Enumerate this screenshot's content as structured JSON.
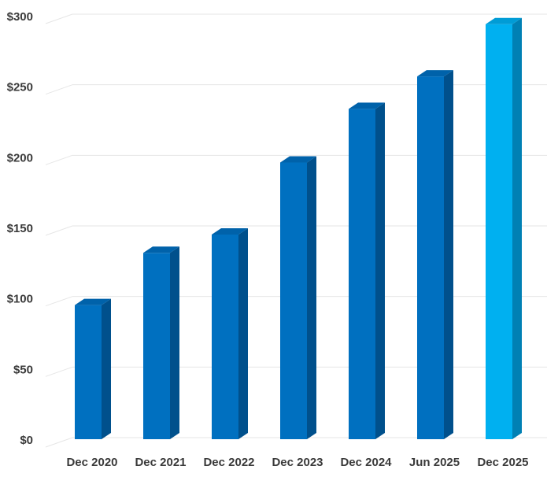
{
  "chart_data": {
    "type": "bar",
    "title": "",
    "xlabel": "",
    "ylabel": "",
    "categories": [
      "Dec 2020",
      "Dec 2021",
      "Dec 2022",
      "Dec 2023",
      "Dec 2024",
      "Jun 2025",
      "Dec 2025"
    ],
    "values": [
      95,
      132,
      145,
      196,
      234,
      257,
      294
    ],
    "highlighted_category": "Dec 2025",
    "ylim": [
      0,
      300
    ],
    "y_ticks": [
      0,
      50,
      100,
      150,
      200,
      250,
      300
    ],
    "y_tick_labels": [
      "$0",
      "$50",
      "$100",
      "$150",
      "$200",
      "$250",
      "$300"
    ],
    "grid": true,
    "legend": "none",
    "style": "3d-columns",
    "colors": {
      "bar_front": "#0070C0",
      "bar_side": "#00508C",
      "bar_top": "#0062AA",
      "highlight_front": "#00B0F0",
      "highlight_side": "#0080B4",
      "highlight_top": "#009CD6",
      "gridline": "#E6E6E6",
      "label": "#3A3A3A"
    }
  }
}
